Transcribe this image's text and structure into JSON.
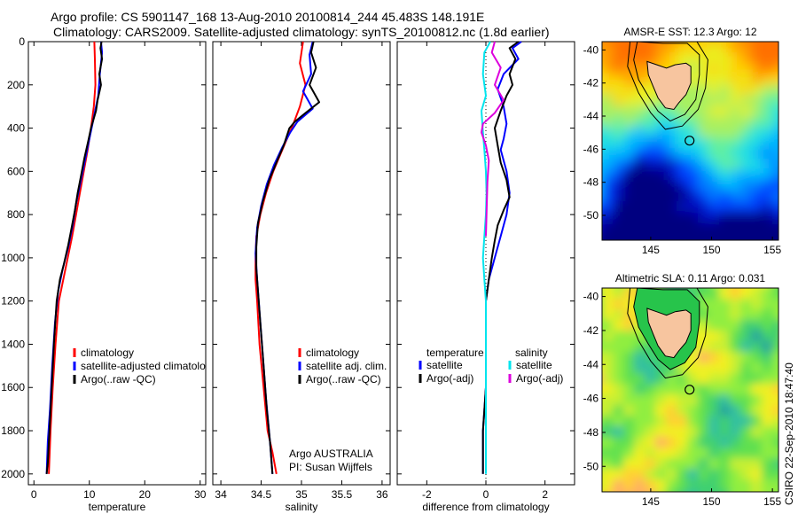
{
  "header": {
    "title_line1": "Argo profile: CS 5901147_168 13-Aug-2010 20100814_244 45.483S 148.191E",
    "title_line2": "Climatology: CARS2009. Satellite-adjusted climatology: synTS_20100812.nc (1.8d earlier)"
  },
  "side_stamp": "CSIRO 22-Sep-2010 18:47:40",
  "colors": {
    "climatology": "#ff0000",
    "satellite": "#0000ff",
    "argo": "#000000",
    "satellite_diff_s": "#00e5ee",
    "argo_diff_s": "#dd00dd"
  },
  "chart_data": [
    {
      "type": "line",
      "xlabel": "temperature",
      "ylabel": "",
      "xlim": [
        -1,
        31
      ],
      "ylim": [
        2050,
        0
      ],
      "xticks": [
        0,
        10,
        20,
        30
      ],
      "yticks": [
        0,
        200,
        400,
        600,
        800,
        1000,
        1200,
        1400,
        1600,
        1800,
        2000
      ],
      "legend": [
        "climatology",
        "satellite-adjusted climatology",
        "Argo(..raw -QC)"
      ],
      "series": [
        {
          "name": "climatology",
          "color": "#ff0000",
          "points": [
            [
              10.9,
              0
            ],
            [
              11.0,
              80
            ],
            [
              11.1,
              200
            ],
            [
              10.8,
              300
            ],
            [
              10.3,
              400
            ],
            [
              9.7,
              500
            ],
            [
              9.0,
              600
            ],
            [
              8.3,
              700
            ],
            [
              7.6,
              800
            ],
            [
              6.9,
              900
            ],
            [
              6.1,
              1000
            ],
            [
              5.3,
              1100
            ],
            [
              4.5,
              1200
            ],
            [
              3.9,
              1400
            ],
            [
              3.4,
              1600
            ],
            [
              3.0,
              1800
            ],
            [
              2.7,
              2000
            ]
          ]
        },
        {
          "name": "satellite-adjusted climatology",
          "color": "#0000ff",
          "points": [
            [
              12.1,
              0
            ],
            [
              12.3,
              50
            ],
            [
              11.9,
              150
            ],
            [
              11.6,
              250
            ],
            [
              10.8,
              350
            ],
            [
              10.0,
              450
            ],
            [
              9.2,
              550
            ],
            [
              8.4,
              650
            ],
            [
              7.6,
              750
            ],
            [
              7.0,
              850
            ],
            [
              6.2,
              950
            ],
            [
              5.2,
              1050
            ],
            [
              4.4,
              1150
            ],
            [
              3.8,
              1300
            ],
            [
              3.3,
              1500
            ],
            [
              2.9,
              1700
            ],
            [
              2.5,
              1850
            ],
            [
              2.3,
              2000
            ]
          ]
        },
        {
          "name": "Argo(..raw -QC)",
          "color": "#000000",
          "points": [
            [
              12.2,
              0
            ],
            [
              12.0,
              30
            ],
            [
              12.3,
              80
            ],
            [
              11.8,
              150
            ],
            [
              12.1,
              200
            ],
            [
              11.5,
              270
            ],
            [
              11.2,
              320
            ],
            [
              10.3,
              400
            ],
            [
              9.8,
              460
            ],
            [
              9.1,
              540
            ],
            [
              8.5,
              620
            ],
            [
              7.9,
              700
            ],
            [
              7.4,
              780
            ],
            [
              6.8,
              860
            ],
            [
              6.2,
              940
            ],
            [
              5.4,
              1030
            ],
            [
              4.7,
              1100
            ],
            [
              4.1,
              1200
            ],
            [
              3.6,
              1400
            ],
            [
              3.2,
              1600
            ],
            [
              2.8,
              1800
            ],
            [
              2.5,
              1950
            ],
            [
              2.3,
              2000
            ]
          ]
        }
      ]
    },
    {
      "type": "line",
      "xlabel": "salinity",
      "ylabel": "",
      "xlim": [
        33.9,
        36.1
      ],
      "ylim": [
        2050,
        0
      ],
      "xticks": [
        34,
        34.5,
        35,
        35.5,
        36
      ],
      "yticks": [],
      "legend": [
        "climatology",
        "satellite adj. clim.",
        "Argo(..raw -QC)"
      ],
      "annotation": [
        "Argo AUSTRALIA",
        "PI: Susan Wijffels"
      ],
      "series": [
        {
          "name": "climatology",
          "color": "#ff0000",
          "points": [
            [
              35.02,
              0
            ],
            [
              34.98,
              100
            ],
            [
              35.05,
              200
            ],
            [
              34.98,
              300
            ],
            [
              34.9,
              380
            ],
            [
              34.82,
              450
            ],
            [
              34.74,
              520
            ],
            [
              34.65,
              600
            ],
            [
              34.56,
              700
            ],
            [
              34.49,
              800
            ],
            [
              34.44,
              900
            ],
            [
              34.43,
              1000
            ],
            [
              34.43,
              1100
            ],
            [
              34.45,
              1200
            ],
            [
              34.48,
              1400
            ],
            [
              34.53,
              1600
            ],
            [
              34.58,
              1800
            ],
            [
              34.64,
              1900
            ],
            [
              34.69,
              2000
            ]
          ]
        },
        {
          "name": "satellite adj. clim.",
          "color": "#0000ff",
          "points": [
            [
              35.14,
              0
            ],
            [
              35.1,
              60
            ],
            [
              35.12,
              150
            ],
            [
              35.02,
              230
            ],
            [
              35.14,
              310
            ],
            [
              34.95,
              370
            ],
            [
              34.86,
              420
            ],
            [
              34.76,
              490
            ],
            [
              34.66,
              570
            ],
            [
              34.57,
              660
            ],
            [
              34.5,
              760
            ],
            [
              34.45,
              860
            ],
            [
              34.43,
              980
            ],
            [
              34.45,
              1100
            ],
            [
              34.48,
              1250
            ],
            [
              34.52,
              1450
            ],
            [
              34.56,
              1650
            ],
            [
              34.61,
              1850
            ],
            [
              34.64,
              2000
            ]
          ]
        },
        {
          "name": "Argo(..raw -QC)",
          "color": "#000000",
          "points": [
            [
              35.15,
              0
            ],
            [
              35.12,
              50
            ],
            [
              35.18,
              120
            ],
            [
              35.1,
              200
            ],
            [
              35.22,
              280
            ],
            [
              35.05,
              330
            ],
            [
              34.92,
              370
            ],
            [
              34.85,
              400
            ],
            [
              34.78,
              480
            ],
            [
              34.7,
              550
            ],
            [
              34.6,
              640
            ],
            [
              34.52,
              740
            ],
            [
              34.46,
              840
            ],
            [
              34.44,
              950
            ],
            [
              34.44,
              1050
            ],
            [
              34.46,
              1150
            ],
            [
              34.49,
              1300
            ],
            [
              34.53,
              1500
            ],
            [
              34.57,
              1700
            ],
            [
              34.61,
              1850
            ],
            [
              34.64,
              2000
            ]
          ]
        }
      ]
    },
    {
      "type": "line",
      "xlabel": "difference from climatology",
      "ylabel": "",
      "xlim": [
        -3,
        3
      ],
      "ylim": [
        2050,
        0
      ],
      "xticks": [
        -2,
        0,
        2
      ],
      "yticks": [],
      "legend_groups": [
        {
          "title": "temperature",
          "entries": [
            "satellite",
            "Argo(-adj)"
          ]
        },
        {
          "title": "salinity",
          "entries": [
            "satellite",
            "Argo(-adj)"
          ]
        }
      ],
      "series": [
        {
          "name": "temperature satellite",
          "color": "#0000ff",
          "points": [
            [
              1.2,
              0
            ],
            [
              0.9,
              30
            ],
            [
              1.1,
              80
            ],
            [
              0.6,
              150
            ],
            [
              0.4,
              220
            ],
            [
              0.6,
              300
            ],
            [
              0.7,
              380
            ],
            [
              0.6,
              450
            ],
            [
              0.5,
              500
            ],
            [
              0.7,
              600
            ],
            [
              0.8,
              700
            ],
            [
              0.7,
              800
            ],
            [
              0.5,
              900
            ],
            [
              0.3,
              1000
            ],
            [
              0.1,
              1100
            ],
            [
              0.0,
              1200
            ],
            [
              0.0,
              1400
            ],
            [
              0.0,
              1600
            ],
            [
              -0.1,
              1800
            ],
            [
              -0.1,
              2000
            ]
          ]
        },
        {
          "name": "temperature Argo(-adj)",
          "color": "#000000",
          "points": [
            [
              1.1,
              0
            ],
            [
              0.8,
              30
            ],
            [
              1.0,
              80
            ],
            [
              0.8,
              150
            ],
            [
              0.9,
              200
            ],
            [
              0.7,
              250
            ],
            [
              0.5,
              320
            ],
            [
              0.3,
              400
            ],
            [
              0.4,
              480
            ],
            [
              0.5,
              560
            ],
            [
              0.7,
              640
            ],
            [
              0.8,
              720
            ],
            [
              0.6,
              780
            ],
            [
              0.4,
              850
            ],
            [
              0.3,
              920
            ],
            [
              0.2,
              1000
            ],
            [
              0.1,
              1100
            ],
            [
              0.0,
              1200
            ],
            [
              0.0,
              1400
            ],
            [
              0.0,
              1600
            ],
            [
              -0.1,
              1800
            ],
            [
              -0.1,
              2000
            ]
          ]
        },
        {
          "name": "salinity satellite",
          "color": "#00e5ee",
          "points": [
            [
              0.15,
              0
            ],
            [
              -0.05,
              50
            ],
            [
              -0.1,
              150
            ],
            [
              0.0,
              250
            ],
            [
              -0.15,
              320
            ],
            [
              -0.1,
              420
            ],
            [
              -0.05,
              500
            ],
            [
              0.0,
              600
            ],
            [
              0.02,
              700
            ],
            [
              0.0,
              800
            ],
            [
              -0.05,
              900
            ],
            [
              -0.1,
              1000
            ],
            [
              -0.05,
              1100
            ],
            [
              0.0,
              1200
            ],
            [
              0.0,
              1400
            ],
            [
              0.0,
              1600
            ],
            [
              0.0,
              1800
            ],
            [
              0.0,
              2000
            ]
          ]
        },
        {
          "name": "salinity Argo(-adj)",
          "color": "#dd00dd",
          "points": [
            [
              0.3,
              0
            ],
            [
              0.2,
              50
            ],
            [
              0.5,
              120
            ],
            [
              0.3,
              200
            ],
            [
              0.6,
              270
            ],
            [
              0.3,
              330
            ],
            [
              -0.1,
              380
            ],
            [
              -0.15,
              420
            ],
            [
              0.0,
              480
            ],
            [
              0.1,
              550
            ],
            [
              0.05,
              650
            ],
            [
              0.02,
              800
            ],
            [
              0.0,
              900
            ]
          ]
        }
      ]
    },
    {
      "type": "heatmap",
      "title": "AMSR-E SST: 12.3 Argo: 12",
      "xlabel": "",
      "ylabel": "",
      "xlim": [
        141,
        155.5
      ],
      "ylim": [
        -51.5,
        -39.5
      ],
      "xticks": [
        145,
        150,
        155
      ],
      "yticks": [
        -40,
        -42,
        -44,
        -46,
        -48,
        -50
      ],
      "marker": {
        "lon": 148.191,
        "lat": -45.483
      }
    },
    {
      "type": "heatmap",
      "title": "Altimetric SLA: 0.11 Argo: 0.031",
      "xlabel": "",
      "ylabel": "",
      "xlim": [
        141,
        155.5
      ],
      "ylim": [
        -51.5,
        -39.5
      ],
      "xticks": [
        145,
        150,
        155
      ],
      "yticks": [
        -40,
        -42,
        -44,
        -46,
        -48,
        -50
      ],
      "marker": {
        "lon": 148.191,
        "lat": -45.483
      }
    }
  ]
}
